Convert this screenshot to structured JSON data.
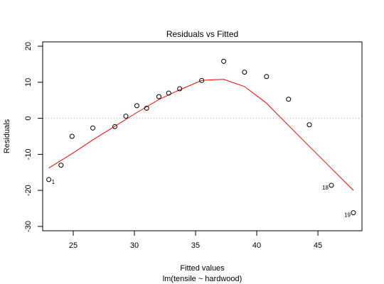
{
  "chart_data": {
    "type": "scatter",
    "title": "Residuals vs Fitted",
    "xlabel": "Fitted values",
    "sublabel": "lm(tensile ~ hardwood)",
    "ylabel": "Residuals",
    "xlim": [
      22.5,
      48.6
    ],
    "ylim": [
      -31.2,
      21.2
    ],
    "xticks": [
      25,
      30,
      35,
      40,
      45
    ],
    "yticks": [
      -30,
      -20,
      -10,
      0,
      10,
      20
    ],
    "grid": false,
    "reference_line_y": 0,
    "points": [
      {
        "x": 23.0,
        "y": -17.0,
        "label": "1"
      },
      {
        "x": 24.0,
        "y": -13.0
      },
      {
        "x": 24.9,
        "y": -5.0
      },
      {
        "x": 26.6,
        "y": -2.7
      },
      {
        "x": 28.4,
        "y": -2.3
      },
      {
        "x": 29.3,
        "y": 0.6
      },
      {
        "x": 30.2,
        "y": 3.5
      },
      {
        "x": 31.0,
        "y": 2.8
      },
      {
        "x": 32.0,
        "y": 6.0
      },
      {
        "x": 32.8,
        "y": 7.0
      },
      {
        "x": 33.7,
        "y": 8.2
      },
      {
        "x": 35.5,
        "y": 10.5
      },
      {
        "x": 37.3,
        "y": 15.8
      },
      {
        "x": 39.0,
        "y": 12.8
      },
      {
        "x": 40.8,
        "y": 11.6
      },
      {
        "x": 42.6,
        "y": 5.3
      },
      {
        "x": 44.3,
        "y": -1.8
      },
      {
        "x": 46.1,
        "y": -18.6,
        "label": "18"
      },
      {
        "x": 47.9,
        "y": -26.2,
        "label": "19"
      }
    ],
    "smooth_line": {
      "color": "#ff0000",
      "x": [
        23.0,
        24.9,
        26.6,
        28.4,
        30.2,
        32.0,
        33.7,
        35.5,
        36.5,
        37.3,
        39.0,
        40.8,
        42.6,
        44.3,
        46.1,
        47.9
      ],
      "y": [
        -13.8,
        -9.8,
        -6.0,
        -2.2,
        1.6,
        5.2,
        7.9,
        10.5,
        10.7,
        10.8,
        8.8,
        4.2,
        -2.0,
        -7.8,
        -13.9,
        -20.0
      ]
    }
  }
}
